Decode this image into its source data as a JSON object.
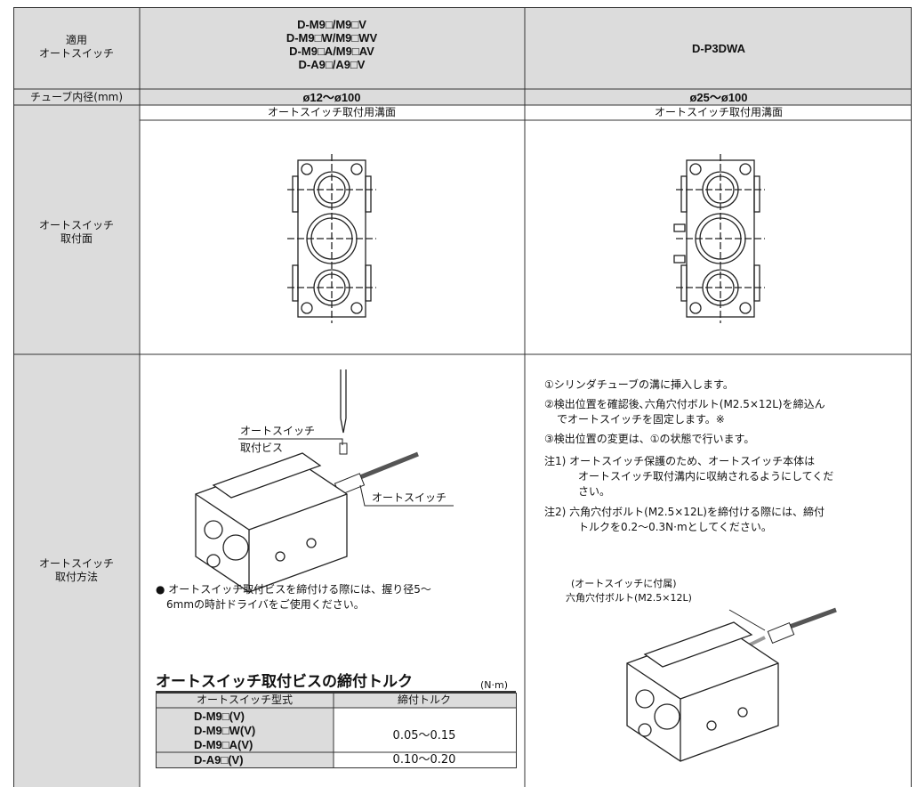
{
  "table": {
    "rows": [
      {
        "label": [
          "適用",
          "オートスイッチ"
        ],
        "left": [
          "D-M9□/M9□V",
          "D-M9□W/M9□WV",
          "D-M9□A/M9□AV",
          "D-A9□/A9□V"
        ],
        "right": [
          "D-P3DWA"
        ]
      },
      {
        "label": [
          "チューブ内径(mm)"
        ],
        "left": [
          "ø12〜ø100"
        ],
        "right": [
          "ø25〜ø100"
        ]
      },
      {
        "label": [
          "オートスイッチ",
          "取付面"
        ],
        "left": [
          "オートスイッチ取付用溝面"
        ],
        "right": [
          "オートスイッチ取付用溝面"
        ]
      },
      {
        "label": [
          "オートスイッチ",
          "取付方法"
        ],
        "left": {
          "callouts": {
            "screw": [
              "オートスイッチ",
              "取付ビス"
            ],
            "switch": "オートスイッチ"
          },
          "note": [
            "● オートスイッチ取付ビスを締付ける際には、握り径5〜",
            "6mmの時計ドライバをご使用ください。"
          ],
          "torque_table": {
            "title": "オートスイッチ取付ビスの締付トルク",
            "unit": "(N·m)",
            "header": [
              "オートスイッチ型式",
              "締付トルク"
            ],
            "rows": [
              {
                "models": [
                  "D-M9□(V)",
                  "D-M9□W(V)",
                  "D-M9□A(V)"
                ],
                "torque": "0.05〜0.15"
              },
              {
                "models": [
                  "D-A9□(V)"
                ],
                "torque": "0.10〜0.20"
              }
            ]
          }
        },
        "right": {
          "steps": [
            [
              "①シリンダチューブの溝に挿入します。"
            ],
            [
              "②検出位置を確認後､六角穴付ボルト(M2.5×12L)を締込ん",
              "でオートスイッチを固定します。※"
            ],
            [
              "③検出位置の変更は、①の状態で行います。"
            ]
          ],
          "notes": [
            [
              "注1) オートスイッチ保護のため、オートスイッチ本体は",
              "オートスイッチ取付溝内に収納されるようにしてくだ",
              "さい。"
            ],
            [
              "注2) 六角穴付ボルト(M2.5×12L)を締付ける際には、締付",
              "トルクを0.2〜0.3N·mとしてください。"
            ]
          ],
          "callout": [
            "(オートスイッチに付属)",
            "六角穴付ボルト(M2.5×12L)"
          ]
        }
      }
    ]
  }
}
